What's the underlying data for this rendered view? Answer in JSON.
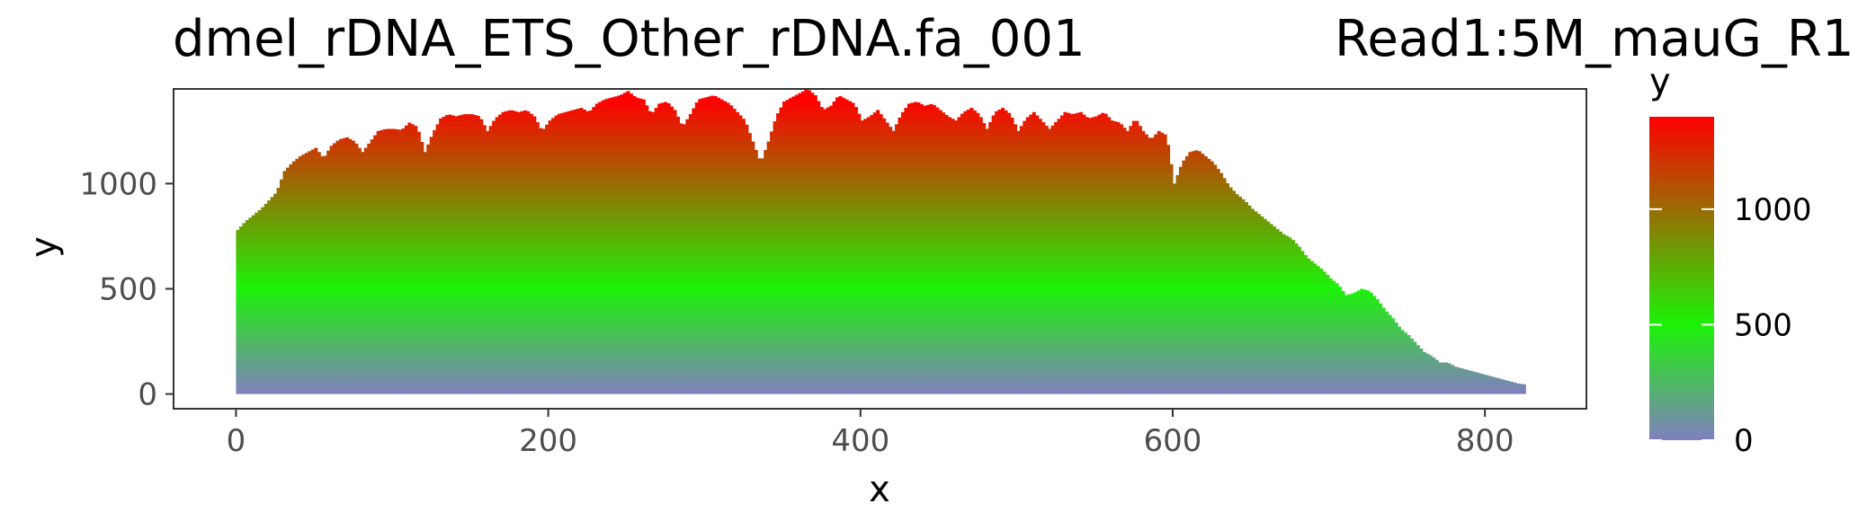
{
  "chart_data": {
    "type": "bar",
    "title": "dmel_rDNA_ETS_Other_rDNA.fa_001",
    "subtitle": "Read1:5M_mauG_R1.",
    "xlabel": "x",
    "ylabel": "y",
    "xlim": [
      -40,
      865
    ],
    "ylim": [
      -70,
      1450
    ],
    "x_ticks": [
      0,
      200,
      400,
      600,
      800
    ],
    "y_ticks": [
      0,
      500,
      1000
    ],
    "grid": false,
    "legend": {
      "title": "y",
      "position": "right",
      "ticks": [
        0,
        500,
        1000
      ],
      "range": [
        0,
        1400
      ],
      "colors": [
        "#7f7fbf",
        "#1cf208",
        "#ff0000"
      ]
    },
    "points": [
      [
        0,
        780
      ],
      [
        5,
        820
      ],
      [
        10,
        850
      ],
      [
        15,
        880
      ],
      [
        20,
        920
      ],
      [
        25,
        960
      ],
      [
        28,
        1020
      ],
      [
        30,
        1060
      ],
      [
        35,
        1100
      ],
      [
        40,
        1130
      ],
      [
        45,
        1150
      ],
      [
        50,
        1170
      ],
      [
        55,
        1120
      ],
      [
        60,
        1180
      ],
      [
        65,
        1210
      ],
      [
        70,
        1220
      ],
      [
        75,
        1200
      ],
      [
        80,
        1150
      ],
      [
        85,
        1200
      ],
      [
        90,
        1250
      ],
      [
        95,
        1260
      ],
      [
        100,
        1260
      ],
      [
        105,
        1255
      ],
      [
        110,
        1290
      ],
      [
        115,
        1270
      ],
      [
        120,
        1150
      ],
      [
        125,
        1240
      ],
      [
        130,
        1310
      ],
      [
        135,
        1330
      ],
      [
        140,
        1320
      ],
      [
        145,
        1330
      ],
      [
        150,
        1330
      ],
      [
        155,
        1320
      ],
      [
        160,
        1250
      ],
      [
        165,
        1310
      ],
      [
        170,
        1340
      ],
      [
        175,
        1350
      ],
      [
        180,
        1340
      ],
      [
        185,
        1350
      ],
      [
        190,
        1320
      ],
      [
        195,
        1250
      ],
      [
        200,
        1300
      ],
      [
        205,
        1330
      ],
      [
        210,
        1340
      ],
      [
        215,
        1350
      ],
      [
        220,
        1360
      ],
      [
        225,
        1340
      ],
      [
        230,
        1380
      ],
      [
        235,
        1400
      ],
      [
        240,
        1410
      ],
      [
        245,
        1420
      ],
      [
        250,
        1440
      ],
      [
        255,
        1410
      ],
      [
        260,
        1400
      ],
      [
        265,
        1330
      ],
      [
        270,
        1380
      ],
      [
        275,
        1390
      ],
      [
        280,
        1350
      ],
      [
        285,
        1270
      ],
      [
        290,
        1330
      ],
      [
        295,
        1400
      ],
      [
        300,
        1410
      ],
      [
        305,
        1420
      ],
      [
        310,
        1400
      ],
      [
        315,
        1380
      ],
      [
        320,
        1340
      ],
      [
        325,
        1300
      ],
      [
        330,
        1200
      ],
      [
        335,
        1100
      ],
      [
        340,
        1200
      ],
      [
        345,
        1320
      ],
      [
        350,
        1390
      ],
      [
        355,
        1410
      ],
      [
        360,
        1430
      ],
      [
        365,
        1450
      ],
      [
        370,
        1420
      ],
      [
        375,
        1350
      ],
      [
        380,
        1370
      ],
      [
        385,
        1420
      ],
      [
        390,
        1400
      ],
      [
        395,
        1380
      ],
      [
        400,
        1300
      ],
      [
        405,
        1320
      ],
      [
        410,
        1350
      ],
      [
        415,
        1300
      ],
      [
        420,
        1250
      ],
      [
        425,
        1330
      ],
      [
        430,
        1380
      ],
      [
        435,
        1390
      ],
      [
        440,
        1370
      ],
      [
        445,
        1380
      ],
      [
        450,
        1350
      ],
      [
        455,
        1320
      ],
      [
        460,
        1300
      ],
      [
        465,
        1340
      ],
      [
        470,
        1360
      ],
      [
        475,
        1330
      ],
      [
        480,
        1260
      ],
      [
        485,
        1340
      ],
      [
        490,
        1360
      ],
      [
        495,
        1330
      ],
      [
        500,
        1250
      ],
      [
        505,
        1310
      ],
      [
        510,
        1340
      ],
      [
        515,
        1300
      ],
      [
        520,
        1260
      ],
      [
        525,
        1300
      ],
      [
        530,
        1340
      ],
      [
        535,
        1330
      ],
      [
        540,
        1340
      ],
      [
        545,
        1310
      ],
      [
        550,
        1320
      ],
      [
        555,
        1340
      ],
      [
        560,
        1300
      ],
      [
        565,
        1290
      ],
      [
        570,
        1250
      ],
      [
        575,
        1310
      ],
      [
        580,
        1250
      ],
      [
        585,
        1210
      ],
      [
        590,
        1250
      ],
      [
        595,
        1230
      ],
      [
        600,
        1000
      ],
      [
        605,
        1100
      ],
      [
        610,
        1150
      ],
      [
        615,
        1160
      ],
      [
        620,
        1130
      ],
      [
        625,
        1100
      ],
      [
        630,
        1050
      ],
      [
        635,
        990
      ],
      [
        640,
        950
      ],
      [
        645,
        920
      ],
      [
        650,
        880
      ],
      [
        655,
        850
      ],
      [
        660,
        820
      ],
      [
        665,
        790
      ],
      [
        670,
        760
      ],
      [
        675,
        740
      ],
      [
        680,
        700
      ],
      [
        685,
        650
      ],
      [
        690,
        620
      ],
      [
        695,
        590
      ],
      [
        700,
        550
      ],
      [
        705,
        520
      ],
      [
        710,
        470
      ],
      [
        715,
        480
      ],
      [
        720,
        500
      ],
      [
        725,
        490
      ],
      [
        730,
        450
      ],
      [
        735,
        400
      ],
      [
        740,
        360
      ],
      [
        745,
        310
      ],
      [
        750,
        280
      ],
      [
        755,
        240
      ],
      [
        760,
        200
      ],
      [
        765,
        180
      ],
      [
        770,
        150
      ],
      [
        775,
        150
      ],
      [
        780,
        130
      ],
      [
        785,
        120
      ],
      [
        790,
        110
      ],
      [
        795,
        100
      ],
      [
        800,
        90
      ],
      [
        805,
        80
      ],
      [
        810,
        70
      ],
      [
        815,
        60
      ],
      [
        820,
        50
      ],
      [
        825,
        45
      ]
    ]
  }
}
